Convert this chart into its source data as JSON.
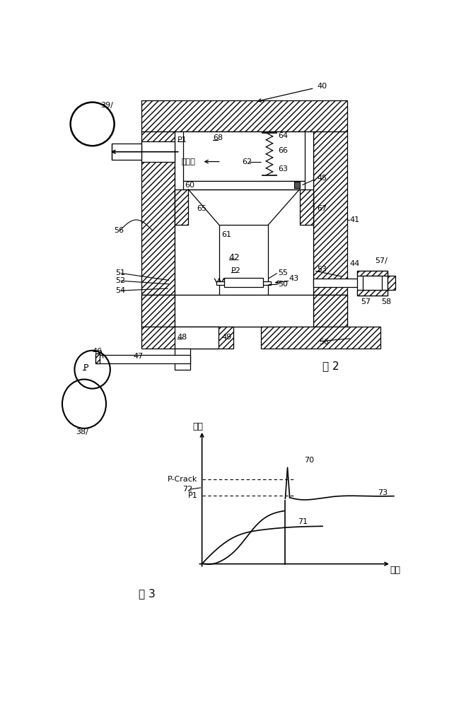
{
  "bg_color": "#ffffff",
  "fig2_label": "图 2",
  "fig3_label": "图 3",
  "fig3_xlabel": "时间",
  "fig3_ylabel": "压力",
  "p_crack_label": "P-Crack",
  "p1_label": "P1",
  "font_size_small": 7,
  "font_size_label": 8,
  "font_size_fig": 11
}
